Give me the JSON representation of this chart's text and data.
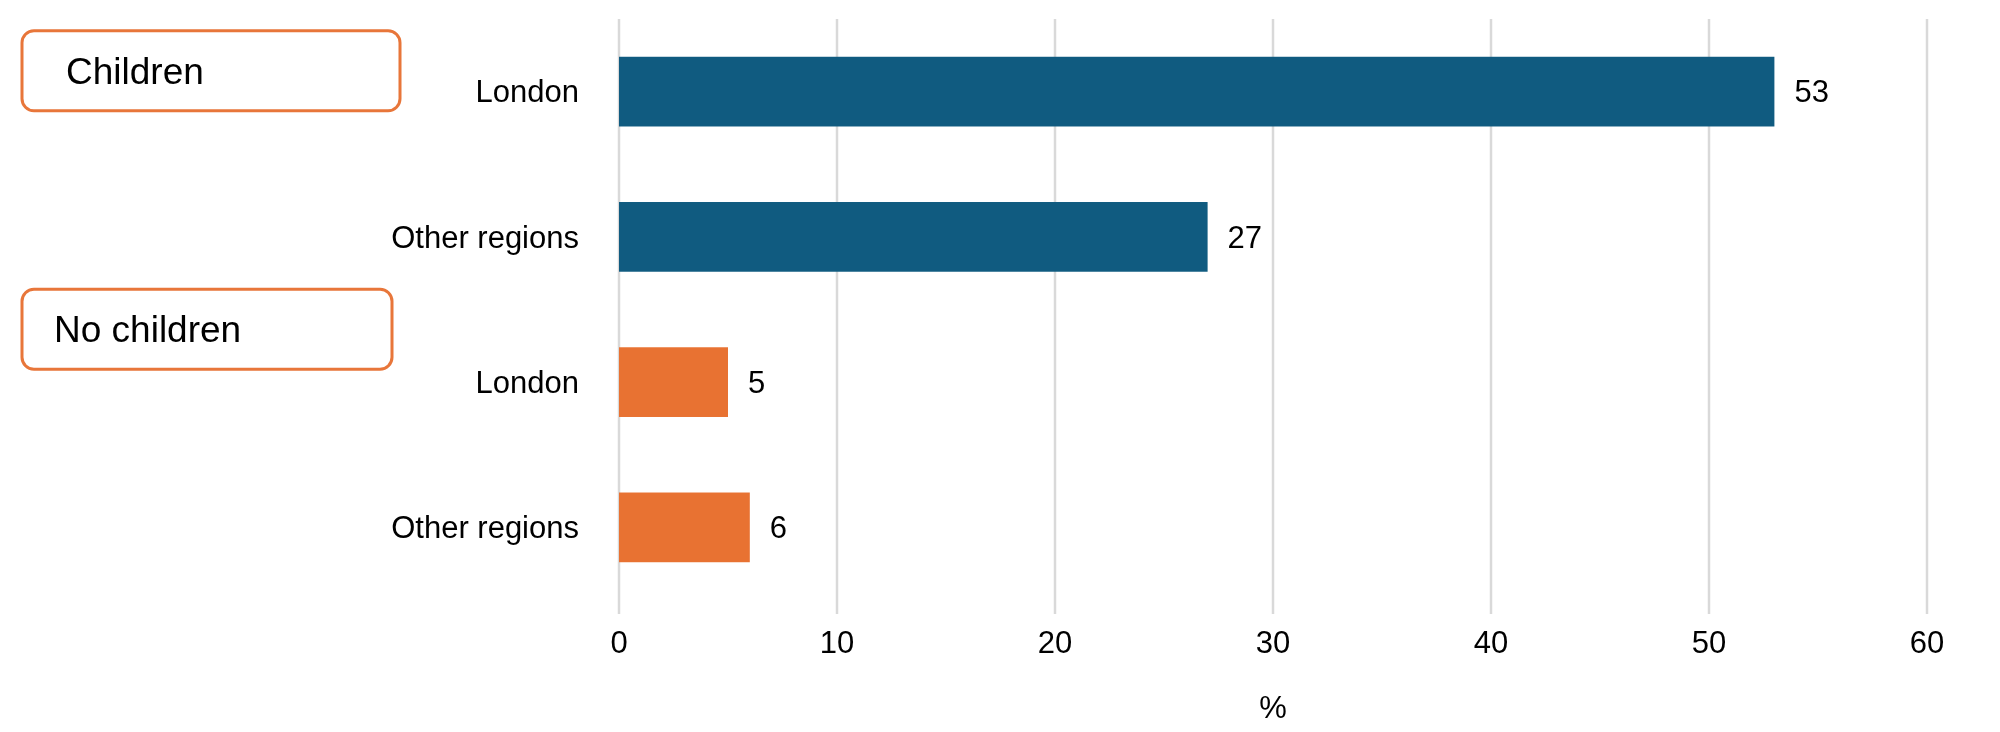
{
  "chart_data": {
    "type": "bar",
    "orientation": "horizontal",
    "categories": [
      "London",
      "Other regions",
      "London",
      "Other regions"
    ],
    "values": [
      53,
      27,
      5,
      6
    ],
    "colors": [
      "#105b80",
      "#105b80",
      "#e87232",
      "#e87232"
    ],
    "xlim": [
      0,
      60
    ],
    "xticks": [
      0,
      10,
      20,
      30,
      40,
      50,
      60
    ],
    "xlabel": "%",
    "grid": "x",
    "data_labels": true,
    "annotations": [
      "Children",
      "No children"
    ]
  }
}
